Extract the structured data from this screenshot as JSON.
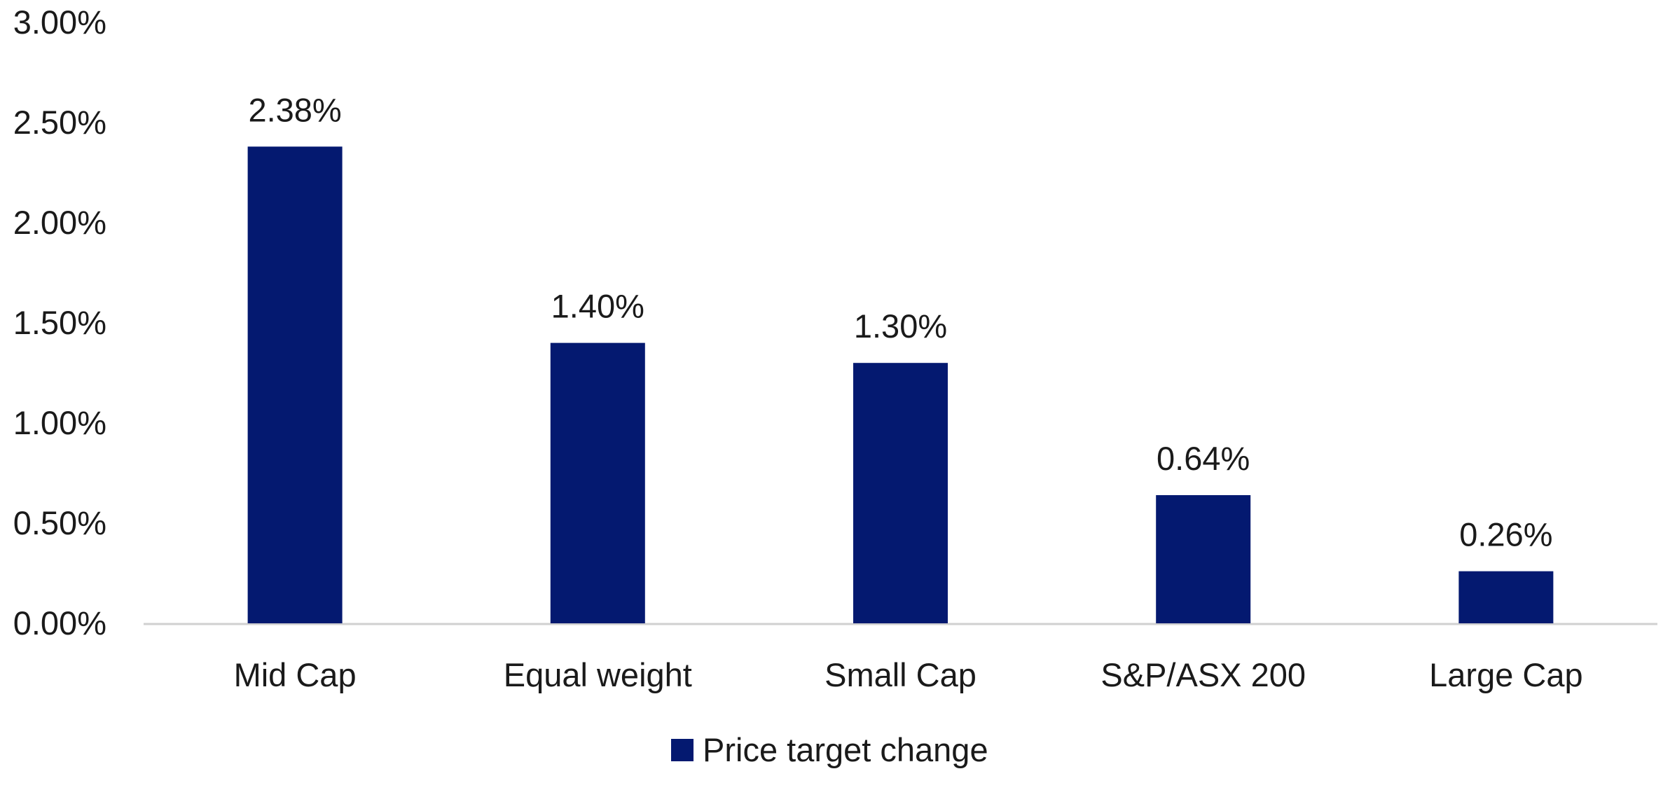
{
  "chart_data": {
    "type": "bar",
    "categories": [
      "Mid Cap",
      "Equal weight",
      "Small Cap",
      "S&P/ASX 200",
      "Large Cap"
    ],
    "series": [
      {
        "name": "Price target change",
        "values": [
          2.38,
          1.4,
          1.3,
          0.64,
          0.26
        ],
        "labels": [
          "2.38%",
          "1.40%",
          "1.30%",
          "0.64%",
          "0.26%"
        ],
        "color": "#041970"
      }
    ],
    "yticks": [
      "0.00%",
      "0.50%",
      "1.00%",
      "1.50%",
      "2.00%",
      "2.50%",
      "3.00%"
    ],
    "ylim": [
      0,
      3
    ],
    "grid": false,
    "legend_position": "bottom-center",
    "title": "",
    "xlabel": "",
    "ylabel": ""
  }
}
